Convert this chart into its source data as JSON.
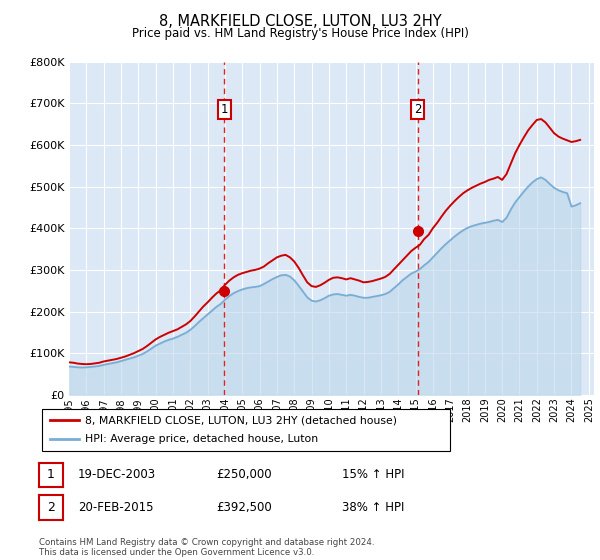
{
  "title": "8, MARKFIELD CLOSE, LUTON, LU3 2HY",
  "subtitle": "Price paid vs. HM Land Registry's House Price Index (HPI)",
  "title_fontsize": 11,
  "subtitle_fontsize": 9,
  "ytick_values": [
    0,
    100000,
    200000,
    300000,
    400000,
    500000,
    600000,
    700000,
    800000
  ],
  "ylim": [
    0,
    800000
  ],
  "xlim_start": 1995.0,
  "xlim_end": 2025.3,
  "fig_bg_color": "#ffffff",
  "plot_bg_color": "#dce8f5",
  "grid_color": "#ffffff",
  "red_line_color": "#cc0000",
  "blue_line_color": "#7aadd4",
  "blue_fill_color": "#b8d4ea",
  "sale1_x": 2003.96,
  "sale1_y": 250000,
  "sale1_label": "1",
  "sale2_x": 2015.12,
  "sale2_y": 392500,
  "sale2_label": "2",
  "legend_line1": "8, MARKFIELD CLOSE, LUTON, LU3 2HY (detached house)",
  "legend_line2": "HPI: Average price, detached house, Luton",
  "table_row1_num": "1",
  "table_row1_date": "19-DEC-2003",
  "table_row1_price": "£250,000",
  "table_row1_hpi": "15% ↑ HPI",
  "table_row2_num": "2",
  "table_row2_date": "20-FEB-2015",
  "table_row2_price": "£392,500",
  "table_row2_hpi": "38% ↑ HPI",
  "footer": "Contains HM Land Registry data © Crown copyright and database right 2024.\nThis data is licensed under the Open Government Licence v3.0.",
  "hpi_data_x": [
    1995.0,
    1995.25,
    1995.5,
    1995.75,
    1996.0,
    1996.25,
    1996.5,
    1996.75,
    1997.0,
    1997.25,
    1997.5,
    1997.75,
    1998.0,
    1998.25,
    1998.5,
    1998.75,
    1999.0,
    1999.25,
    1999.5,
    1999.75,
    2000.0,
    2000.25,
    2000.5,
    2000.75,
    2001.0,
    2001.25,
    2001.5,
    2001.75,
    2002.0,
    2002.25,
    2002.5,
    2002.75,
    2003.0,
    2003.25,
    2003.5,
    2003.75,
    2004.0,
    2004.25,
    2004.5,
    2004.75,
    2005.0,
    2005.25,
    2005.5,
    2005.75,
    2006.0,
    2006.25,
    2006.5,
    2006.75,
    2007.0,
    2007.25,
    2007.5,
    2007.75,
    2008.0,
    2008.25,
    2008.5,
    2008.75,
    2009.0,
    2009.25,
    2009.5,
    2009.75,
    2010.0,
    2010.25,
    2010.5,
    2010.75,
    2011.0,
    2011.25,
    2011.5,
    2011.75,
    2012.0,
    2012.25,
    2012.5,
    2012.75,
    2013.0,
    2013.25,
    2013.5,
    2013.75,
    2014.0,
    2014.25,
    2014.5,
    2014.75,
    2015.0,
    2015.25,
    2015.5,
    2015.75,
    2016.0,
    2016.25,
    2016.5,
    2016.75,
    2017.0,
    2017.25,
    2017.5,
    2017.75,
    2018.0,
    2018.25,
    2018.5,
    2018.75,
    2019.0,
    2019.25,
    2019.5,
    2019.75,
    2020.0,
    2020.25,
    2020.5,
    2020.75,
    2021.0,
    2021.25,
    2021.5,
    2021.75,
    2022.0,
    2022.25,
    2022.5,
    2022.75,
    2023.0,
    2023.25,
    2023.5,
    2023.75,
    2024.0,
    2024.25,
    2024.5
  ],
  "hpi_data_y": [
    68000,
    67000,
    66000,
    65500,
    66000,
    67000,
    68000,
    69500,
    72000,
    74000,
    76000,
    78000,
    81000,
    84000,
    87000,
    90000,
    94000,
    98000,
    104000,
    111000,
    118000,
    123000,
    128000,
    132000,
    135000,
    139000,
    144000,
    149000,
    156000,
    165000,
    175000,
    184000,
    193000,
    202000,
    211000,
    218000,
    228000,
    237000,
    244000,
    249000,
    253000,
    256000,
    258000,
    259000,
    261000,
    266000,
    272000,
    278000,
    283000,
    287000,
    288000,
    284000,
    275000,
    262000,
    248000,
    234000,
    226000,
    224000,
    227000,
    232000,
    238000,
    241000,
    242000,
    240000,
    238000,
    240000,
    238000,
    235000,
    233000,
    233000,
    235000,
    237000,
    239000,
    242000,
    247000,
    256000,
    265000,
    275000,
    283000,
    291000,
    296000,
    302000,
    311000,
    319000,
    330000,
    341000,
    352000,
    362000,
    371000,
    380000,
    388000,
    395000,
    401000,
    405000,
    408000,
    411000,
    413000,
    415000,
    418000,
    420000,
    415000,
    425000,
    445000,
    462000,
    475000,
    488000,
    500000,
    510000,
    518000,
    522000,
    516000,
    506000,
    497000,
    491000,
    487000,
    484000,
    452000,
    455000,
    460000
  ],
  "red_data_x": [
    1995.0,
    1995.25,
    1995.5,
    1995.75,
    1996.0,
    1996.25,
    1996.5,
    1996.75,
    1997.0,
    1997.25,
    1997.5,
    1997.75,
    1998.0,
    1998.25,
    1998.5,
    1998.75,
    1999.0,
    1999.25,
    1999.5,
    1999.75,
    2000.0,
    2000.25,
    2000.5,
    2000.75,
    2001.0,
    2001.25,
    2001.5,
    2001.75,
    2002.0,
    2002.25,
    2002.5,
    2002.75,
    2003.0,
    2003.25,
    2003.5,
    2003.75,
    2004.0,
    2004.25,
    2004.5,
    2004.75,
    2005.0,
    2005.25,
    2005.5,
    2005.75,
    2006.0,
    2006.25,
    2006.5,
    2006.75,
    2007.0,
    2007.25,
    2007.5,
    2007.75,
    2008.0,
    2008.25,
    2008.5,
    2008.75,
    2009.0,
    2009.25,
    2009.5,
    2009.75,
    2010.0,
    2010.25,
    2010.5,
    2010.75,
    2011.0,
    2011.25,
    2011.5,
    2011.75,
    2012.0,
    2012.25,
    2012.5,
    2012.75,
    2013.0,
    2013.25,
    2013.5,
    2013.75,
    2014.0,
    2014.25,
    2014.5,
    2014.75,
    2015.0,
    2015.25,
    2015.5,
    2015.75,
    2016.0,
    2016.25,
    2016.5,
    2016.75,
    2017.0,
    2017.25,
    2017.5,
    2017.75,
    2018.0,
    2018.25,
    2018.5,
    2018.75,
    2019.0,
    2019.25,
    2019.5,
    2019.75,
    2020.0,
    2020.25,
    2020.5,
    2020.75,
    2021.0,
    2021.25,
    2021.5,
    2021.75,
    2022.0,
    2022.25,
    2022.5,
    2022.75,
    2023.0,
    2023.25,
    2023.5,
    2023.75,
    2024.0,
    2024.25,
    2024.5
  ],
  "red_data_y": [
    78000,
    77000,
    75000,
    74000,
    73500,
    74000,
    75500,
    77000,
    80000,
    82000,
    84000,
    86000,
    89000,
    92000,
    96000,
    100000,
    105000,
    110000,
    117000,
    125000,
    133000,
    139000,
    144000,
    149000,
    153000,
    157000,
    163000,
    169000,
    177000,
    188000,
    200000,
    212000,
    222000,
    233000,
    243000,
    251000,
    264000,
    274000,
    282000,
    288000,
    292000,
    295000,
    298000,
    300000,
    303000,
    308000,
    316000,
    323000,
    330000,
    334000,
    336000,
    330000,
    320000,
    305000,
    287000,
    270000,
    261000,
    259000,
    263000,
    269000,
    276000,
    281000,
    282000,
    280000,
    277000,
    280000,
    277000,
    274000,
    270000,
    271000,
    273000,
    276000,
    279000,
    283000,
    290000,
    301000,
    312000,
    323000,
    334000,
    345000,
    353000,
    360000,
    374000,
    384000,
    400000,
    413000,
    428000,
    442000,
    454000,
    465000,
    475000,
    484000,
    491000,
    497000,
    502000,
    507000,
    511000,
    516000,
    519000,
    523000,
    516000,
    530000,
    555000,
    580000,
    600000,
    618000,
    635000,
    648000,
    660000,
    662000,
    654000,
    641000,
    628000,
    620000,
    615000,
    611000,
    607000,
    609000,
    612000
  ]
}
